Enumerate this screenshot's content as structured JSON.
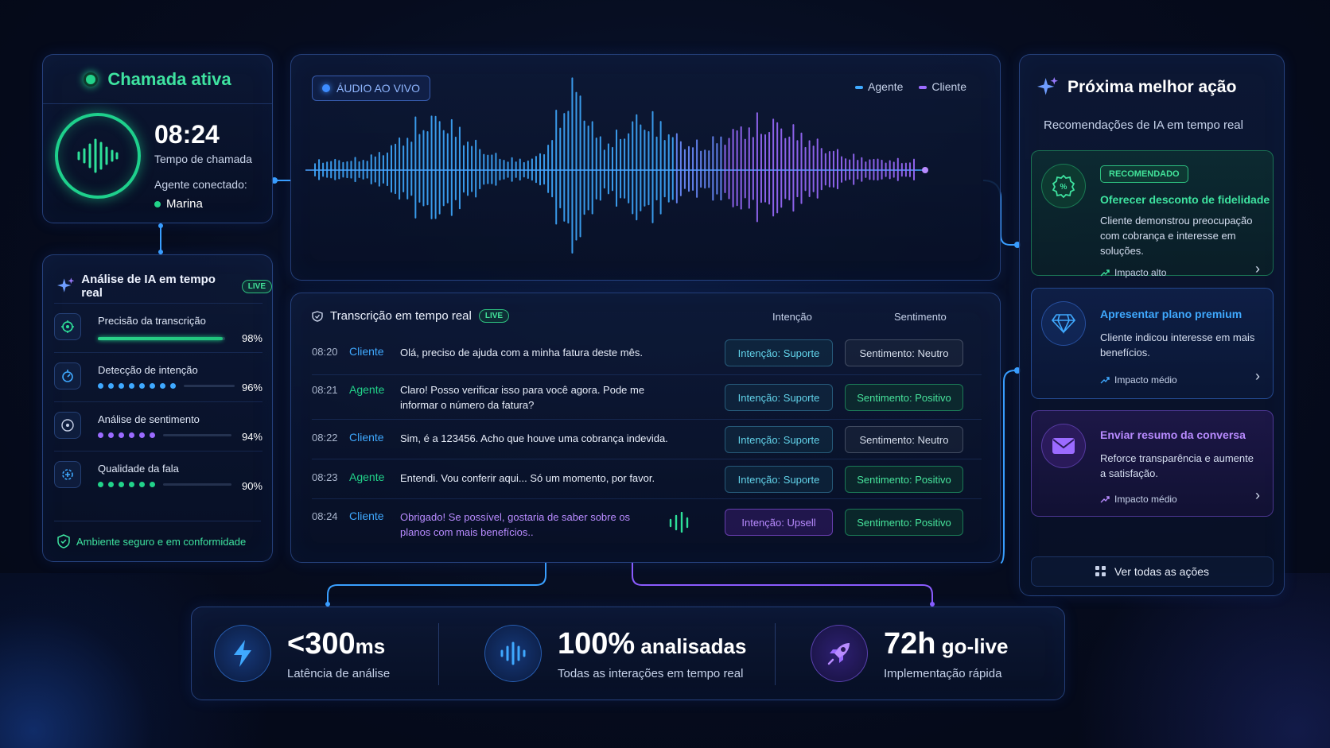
{
  "call": {
    "title": "Chamada ativa",
    "time": "08:24",
    "time_label": "Tempo de chamada",
    "agent_label": "Agente conectado:",
    "agent_name": "Marina"
  },
  "analysis": {
    "title": "Análise de IA em tempo real",
    "badge": "LIVE",
    "metrics": [
      {
        "label": "Precisão da transcrição",
        "value": "98%",
        "level": 0.98
      },
      {
        "label": "Detecção de intenção",
        "value": "96%",
        "level": 0.96
      },
      {
        "label": "Análise de sentimento",
        "value": "94%",
        "level": 0.94
      },
      {
        "label": "Qualidade da fala",
        "value": "90%",
        "level": 0.9
      }
    ],
    "secure_text": "Ambiente seguro e em conformidade"
  },
  "audio": {
    "badge": "ÁUDIO AO VIVO",
    "legend": [
      {
        "label": "Agente",
        "color": "#3fa9ff"
      },
      {
        "label": "Cliente",
        "color": "#9b6bff"
      }
    ]
  },
  "transcript": {
    "title": "Transcrição em tempo real",
    "badge": "LIVE",
    "col_intent": "Intenção",
    "col_sentiment": "Sentimento",
    "rows": [
      {
        "time": "08:20",
        "who": "Cliente",
        "msg": "Olá, preciso de ajuda com a minha fatura deste mês.",
        "intent": "Intenção: Suporte",
        "sentiment": "Sentimento: Neutro"
      },
      {
        "time": "08:21",
        "who": "Agente",
        "msg": "Claro! Posso verificar isso para você agora. Pode me informar o número da fatura?",
        "intent": "Intenção: Suporte",
        "sentiment": "Sentimento: Positivo"
      },
      {
        "time": "08:22",
        "who": "Cliente",
        "msg": "Sim, é a 123456. Acho que houve uma cobrança indevida.",
        "intent": "Intenção: Suporte",
        "sentiment": "Sentimento: Neutro"
      },
      {
        "time": "08:23",
        "who": "Agente",
        "msg": "Entendi. Vou conferir aqui... Só um momento, por favor.",
        "intent": "Intenção: Suporte",
        "sentiment": "Sentimento: Positivo"
      },
      {
        "time": "08:24",
        "who": "Cliente",
        "msg": "Obrigado! Se possível, gostaria de saber sobre os planos com mais benefícios..",
        "intent": "Intenção: Upsell",
        "sentiment": "Sentimento: Positivo"
      }
    ]
  },
  "next_action": {
    "title": "Próxima melhor ação",
    "subtitle": "Recomendações de IA em tempo real",
    "cards": [
      {
        "badge": "RECOMENDADO",
        "title": "Oferecer desconto de fidelidade",
        "desc": "Cliente demonstrou preocupação com cobrança e interesse em soluções.",
        "impact": "Impacto alto",
        "icon": "percent-badge-icon"
      },
      {
        "title": "Apresentar plano premium",
        "desc": "Cliente indicou interesse em mais benefícios.",
        "impact": "Impacto médio",
        "icon": "diamond-icon"
      },
      {
        "title": "Enviar resumo da conversa",
        "desc": "Reforce transparência e aumente a satisfação.",
        "impact": "Impacto médio",
        "icon": "mail-icon"
      }
    ],
    "view_all": "Ver todas as ações"
  },
  "stats": [
    {
      "big": "<300",
      "unit": "ms",
      "label": "Latência de análise",
      "icon": "lightning-icon"
    },
    {
      "big": "100%",
      "unit": " analisadas",
      "label": "Todas as interações em tempo real",
      "icon": "audio-wave-icon"
    },
    {
      "big": "72h",
      "unit": " go-live",
      "label": "Implementação rápida",
      "icon": "rocket-icon"
    }
  ],
  "colors": {
    "green": "#22d38a",
    "blue": "#3fa9ff",
    "purple": "#9b6bff",
    "cyan": "#62d3ea"
  }
}
